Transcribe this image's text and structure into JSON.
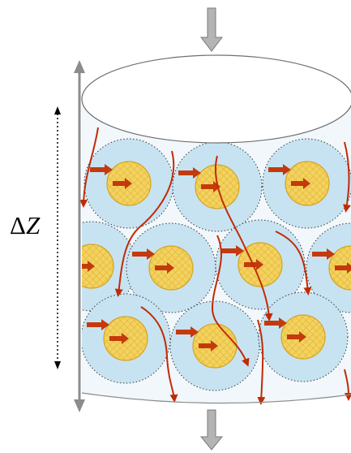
{
  "diagram": {
    "height_label_symbol": "Δ",
    "height_label_variable": "Z",
    "colors": {
      "outer_sphere": "#c7e3f2",
      "core": "#f0d060",
      "core_edge": "#d4a520",
      "mass_transfer_arrow": "#c43a0c",
      "flow_line": "#c22a05",
      "flow_arrow": "#a0a0a0",
      "column_axis": "#8c8c8c"
    },
    "icons": [
      "inlet-flow-arrow",
      "outlet-flow-arrow",
      "height-dimension-arrow",
      "column-axis-arrow"
    ]
  }
}
